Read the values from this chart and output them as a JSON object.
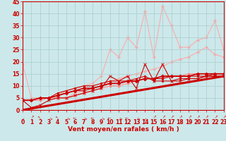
{
  "bg_color": "#cce8ea",
  "grid_color": "#aacccc",
  "xlabel": "Vent moyen/en rafales ( km/h )",
  "xlim": [
    0,
    23
  ],
  "ylim": [
    0,
    45
  ],
  "yticks": [
    0,
    5,
    10,
    15,
    20,
    25,
    30,
    35,
    40,
    45
  ],
  "xticks": [
    0,
    1,
    2,
    3,
    4,
    5,
    6,
    7,
    8,
    9,
    10,
    11,
    12,
    13,
    14,
    15,
    16,
    17,
    18,
    19,
    20,
    21,
    22,
    23
  ],
  "lines": [
    {
      "x": [
        0,
        23
      ],
      "y": [
        0,
        14
      ],
      "color": "#cc0000",
      "lw": 2.2,
      "marker": null,
      "ms": 0,
      "zorder": 2
    },
    {
      "x": [
        0,
        1,
        2,
        3,
        4,
        5,
        6,
        7,
        8,
        9,
        10,
        11,
        12,
        13,
        14,
        15,
        16,
        17,
        18,
        19,
        20,
        21,
        22,
        23
      ],
      "y": [
        4,
        4,
        5,
        5,
        6,
        8,
        9,
        10,
        11,
        14,
        25,
        22,
        30,
        26,
        41,
        22,
        43,
        35,
        26,
        26,
        29,
        30,
        37,
        25
      ],
      "color": "#ffaaaa",
      "lw": 0.8,
      "marker": "D",
      "ms": 2,
      "zorder": 1
    },
    {
      "x": [
        0,
        1,
        2,
        3,
        4,
        5,
        6,
        7,
        8,
        9,
        10,
        11,
        12,
        13,
        14,
        15,
        16,
        17,
        18,
        19,
        20,
        21,
        22,
        23
      ],
      "y": [
        19,
        5,
        5,
        5,
        5,
        5,
        7,
        8,
        9,
        10,
        12,
        13,
        14,
        15,
        16,
        17,
        18,
        20,
        21,
        22,
        24,
        26,
        23,
        22
      ],
      "color": "#ffaaaa",
      "lw": 0.8,
      "marker": "D",
      "ms": 2,
      "zorder": 1
    },
    {
      "x": [
        0,
        1,
        2,
        3,
        4,
        5,
        6,
        7,
        8,
        9,
        10,
        11,
        12,
        13,
        14,
        15,
        16,
        17,
        18,
        19,
        20,
        21,
        22,
        23
      ],
      "y": [
        4,
        4,
        4,
        5,
        5,
        5,
        6,
        7,
        8,
        9,
        10,
        10,
        11,
        12,
        13,
        13,
        14,
        14,
        14,
        15,
        15,
        15,
        15,
        15
      ],
      "color": "#ff8888",
      "lw": 0.8,
      "marker": "D",
      "ms": 2,
      "zorder": 2
    },
    {
      "x": [
        0,
        1,
        2,
        3,
        4,
        5,
        6,
        7,
        8,
        9,
        10,
        11,
        12,
        13,
        14,
        15,
        16,
        17,
        18,
        19,
        20,
        21,
        22,
        23
      ],
      "y": [
        4,
        1,
        2,
        4,
        5,
        5,
        6,
        7,
        8,
        9,
        14,
        12,
        14,
        9,
        19,
        12,
        19,
        12,
        12,
        13,
        13,
        14,
        14,
        14
      ],
      "color": "#cc0000",
      "lw": 0.8,
      "marker": "x",
      "ms": 3,
      "zorder": 4
    },
    {
      "x": [
        0,
        1,
        2,
        3,
        4,
        5,
        6,
        7,
        8,
        9,
        10,
        11,
        12,
        13,
        14,
        15,
        16,
        17,
        18,
        19,
        20,
        21,
        22,
        23
      ],
      "y": [
        4,
        4,
        5,
        5,
        7,
        8,
        9,
        10,
        10,
        11,
        12,
        12,
        12,
        13,
        14,
        12,
        12,
        12,
        13,
        13,
        13,
        14,
        14,
        14
      ],
      "color": "#cc0000",
      "lw": 0.8,
      "marker": "s",
      "ms": 2,
      "zorder": 4
    },
    {
      "x": [
        0,
        1,
        2,
        3,
        4,
        5,
        6,
        7,
        8,
        9,
        10,
        11,
        12,
        13,
        14,
        15,
        16,
        17,
        18,
        19,
        20,
        21,
        22,
        23
      ],
      "y": [
        4,
        4,
        5,
        5,
        6,
        7,
        8,
        8,
        9,
        10,
        11,
        11,
        12,
        12,
        13,
        13,
        13,
        14,
        14,
        14,
        14,
        14,
        15,
        15
      ],
      "color": "#cc0000",
      "lw": 0.8,
      "marker": "P",
      "ms": 2,
      "zorder": 5
    },
    {
      "x": [
        0,
        1,
        2,
        3,
        4,
        5,
        6,
        7,
        8,
        9,
        10,
        11,
        12,
        13,
        14,
        15,
        16,
        17,
        18,
        19,
        20,
        21,
        22,
        23
      ],
      "y": [
        4,
        4,
        5,
        5,
        6,
        7,
        8,
        9,
        9,
        10,
        11,
        11,
        12,
        12,
        13,
        13,
        14,
        14,
        14,
        14,
        15,
        15,
        15,
        15
      ],
      "color": "#cc0000",
      "lw": 1.2,
      "marker": "D",
      "ms": 2.5,
      "zorder": 6
    }
  ],
  "arrow_directions": [
    225,
    45,
    315,
    135,
    315,
    135,
    270,
    135,
    270,
    135,
    270,
    135,
    270,
    135,
    225,
    45,
    45,
    45,
    45,
    45,
    45,
    45,
    45,
    45
  ],
  "tick_color": "#cc0000",
  "label_color": "#cc0000",
  "label_fontsize": 5.5,
  "xlabel_fontsize": 6.5
}
